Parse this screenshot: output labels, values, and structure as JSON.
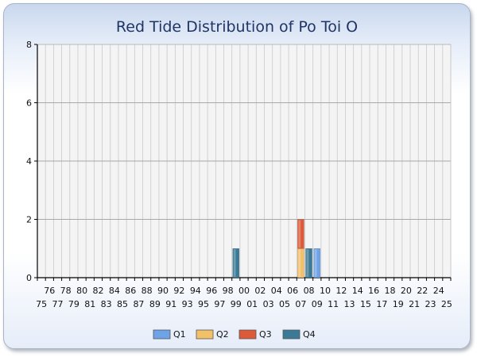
{
  "chart_data": {
    "type": "bar",
    "stacked": true,
    "title": "Red Tide Distribution of Po Toi O",
    "xlabel": "",
    "ylabel": "",
    "ylim": [
      0,
      8
    ],
    "yticks": [
      0,
      2,
      4,
      6,
      8
    ],
    "grid": true,
    "legend_position": "bottom",
    "categories": [
      "75",
      "76",
      "77",
      "78",
      "79",
      "80",
      "81",
      "82",
      "83",
      "84",
      "85",
      "86",
      "87",
      "88",
      "89",
      "90",
      "91",
      "92",
      "93",
      "94",
      "95",
      "96",
      "97",
      "98",
      "99",
      "00",
      "01",
      "02",
      "03",
      "04",
      "05",
      "06",
      "07",
      "08",
      "09",
      "10",
      "11",
      "12",
      "13",
      "14",
      "15",
      "16",
      "17",
      "18",
      "19",
      "20",
      "21",
      "22",
      "23",
      "24",
      "25"
    ],
    "series": [
      {
        "name": "Q1",
        "color": "#6ea3e8",
        "values": [
          0,
          0,
          0,
          0,
          0,
          0,
          0,
          0,
          0,
          0,
          0,
          0,
          0,
          0,
          0,
          0,
          0,
          0,
          0,
          0,
          0,
          0,
          0,
          0,
          0,
          0,
          0,
          0,
          0,
          0,
          0,
          0,
          0,
          0,
          1,
          0,
          0,
          0,
          0,
          0,
          0,
          0,
          0,
          0,
          0,
          0,
          0,
          0,
          0,
          0,
          0
        ]
      },
      {
        "name": "Q2",
        "color": "#f3c06a",
        "values": [
          0,
          0,
          0,
          0,
          0,
          0,
          0,
          0,
          0,
          0,
          0,
          0,
          0,
          0,
          0,
          0,
          0,
          0,
          0,
          0,
          0,
          0,
          0,
          0,
          0,
          0,
          0,
          0,
          0,
          0,
          0,
          0,
          1,
          0,
          0,
          0,
          0,
          0,
          0,
          0,
          0,
          0,
          0,
          0,
          0,
          0,
          0,
          0,
          0,
          0,
          0
        ]
      },
      {
        "name": "Q3",
        "color": "#dc5a3a",
        "values": [
          0,
          0,
          0,
          0,
          0,
          0,
          0,
          0,
          0,
          0,
          0,
          0,
          0,
          0,
          0,
          0,
          0,
          0,
          0,
          0,
          0,
          0,
          0,
          0,
          0,
          0,
          0,
          0,
          0,
          0,
          0,
          0,
          1,
          0,
          0,
          0,
          0,
          0,
          0,
          0,
          0,
          0,
          0,
          0,
          0,
          0,
          0,
          0,
          0,
          0,
          0
        ]
      },
      {
        "name": "Q4",
        "color": "#3b7a96",
        "values": [
          0,
          0,
          0,
          0,
          0,
          0,
          0,
          0,
          0,
          0,
          0,
          0,
          0,
          0,
          0,
          0,
          0,
          0,
          0,
          0,
          0,
          0,
          0,
          0,
          1,
          0,
          0,
          0,
          0,
          0,
          0,
          0,
          0,
          1,
          0,
          0,
          0,
          0,
          0,
          0,
          0,
          0,
          0,
          0,
          0,
          0,
          0,
          0,
          0,
          0,
          0
        ]
      }
    ]
  }
}
